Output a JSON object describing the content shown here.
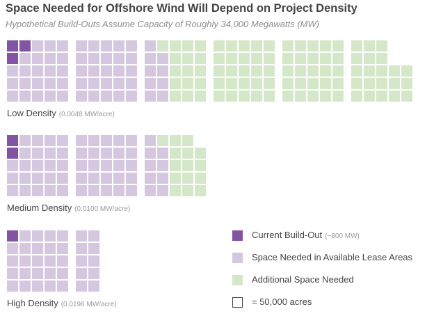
{
  "chart_data": {
    "type": "waffle",
    "title": "Space Needed for Offshore Wind Will Depend on Project Density",
    "subtitle": "Hypothetical Build-Outs Assume Capacity of Roughly 34,000 Megawatts (MW)",
    "unit_label": "= 50,000 acres",
    "series": [
      {
        "name": "Current Build-Out",
        "note": "(~800 MW)",
        "color": "#8353a4"
      },
      {
        "name": "Space Needed in Available Lease Areas",
        "color": "#d6c7e0"
      },
      {
        "name": "Additional Space Needed",
        "color": "#d5e7c9"
      }
    ],
    "scenarios": [
      {
        "name": "Low Density",
        "rate": "(0.0048 MW/acre)",
        "blocks": [
          {
            "columns": 5,
            "cells": [
              "CCPPP",
              "CPPPP",
              "PPPPP",
              "PPPPP",
              "PPPPP"
            ]
          },
          {
            "columns": 5,
            "cells": [
              "PPPPP",
              "PPPPP",
              "PPPPP",
              "PPPPP",
              "PPPPP"
            ]
          },
          {
            "columns": 5,
            "cells": [
              "PGGGG",
              "PPGGG",
              "PPGGG",
              "PPGGG",
              "PPGGG"
            ]
          },
          {
            "columns": 5,
            "cells": [
              "GGGGG",
              "GGGGG",
              "GGGGG",
              "GGGGG",
              "GGGGG"
            ]
          },
          {
            "columns": 5,
            "cells": [
              "GGGGG",
              "GGGGG",
              "GGGGG",
              "GGGGG",
              "GGGGG"
            ]
          },
          {
            "columns": 5,
            "cells": [
              "GGG",
              "GGG",
              "GGGGG",
              "GGGGG",
              "GGGGG"
            ]
          }
        ]
      },
      {
        "name": "Medium Density",
        "rate": "(0.0100 MW/acre)",
        "blocks": [
          {
            "columns": 5,
            "cells": [
              "CPPPP",
              "CPPPP",
              "PPPPP",
              "PPPPP",
              "PPPPP"
            ]
          },
          {
            "columns": 5,
            "cells": [
              "PPPPP",
              "PPPPP",
              "PPPPP",
              "PPPPP",
              "PPPPP"
            ]
          },
          {
            "columns": 5,
            "cells": [
              "PGGG",
              "PPGGG",
              "PPGGG",
              "PPGGG",
              "PPGGG"
            ]
          }
        ]
      },
      {
        "name": "High Density",
        "rate": "(0.0196 MW/acre)",
        "blocks": [
          {
            "columns": 5,
            "cells": [
              "CPPPP",
              "PPPPP",
              "PPPPP",
              "PPPPP",
              "PPPPP"
            ]
          },
          {
            "columns": 2,
            "cells": [
              "PP",
              "PP",
              "PP",
              "PP",
              "PP"
            ]
          }
        ]
      }
    ]
  },
  "legend": {
    "current": {
      "label": "Current Build-Out",
      "note": "(~800 MW)"
    },
    "available": {
      "label": "Space Needed in Available Lease Areas"
    },
    "additional": {
      "label": "Additional Space Needed"
    },
    "unit": {
      "label": "= 50,000 acres"
    }
  }
}
